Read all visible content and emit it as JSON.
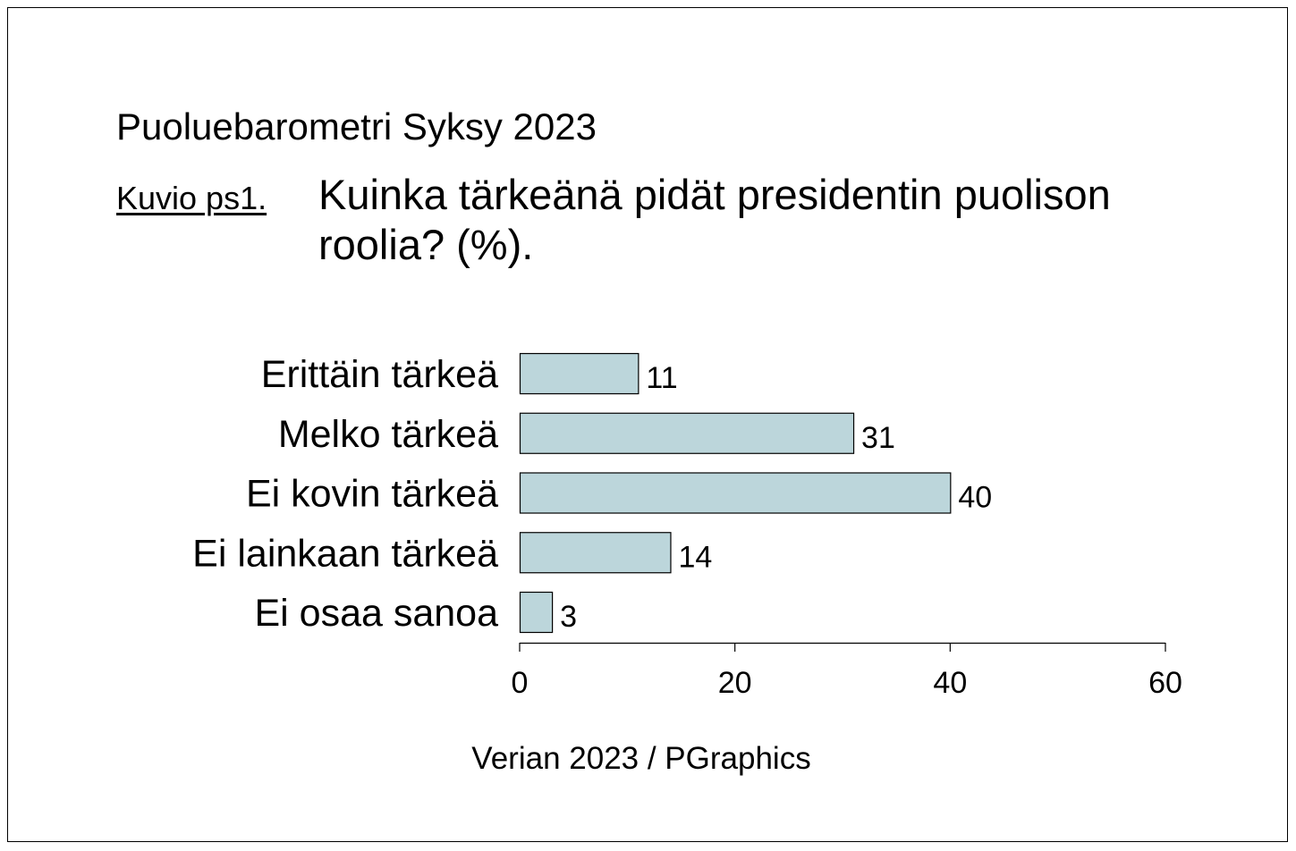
{
  "header": {
    "report_title": "Puoluebarometri Syksy 2023",
    "figure_label": "Kuvio ps1.",
    "figure_question": "Kuinka tärkeänä pidät presidentin puolison roolia? (%)."
  },
  "footer": {
    "source": "Verian 2023 / PGraphics"
  },
  "colors": {
    "bar_fill": "#bcd6db",
    "bar_stroke": "#000000",
    "text": "#000000",
    "frame": "#000000"
  },
  "chart_data": {
    "type": "bar",
    "orientation": "horizontal",
    "title": "Kuinka tärkeänä pidät presidentin puolison roolia? (%).",
    "xlabel": "",
    "ylabel": "",
    "categories": [
      "Erittäin tärkeä",
      "Melko tärkeä",
      "Ei kovin tärkeä",
      "Ei lainkaan tärkeä",
      "Ei osaa sanoa"
    ],
    "values": [
      11,
      31,
      40,
      14,
      3
    ],
    "data_labels": [
      "11",
      "31",
      "40",
      "14",
      "3"
    ],
    "xlim": [
      0,
      60
    ],
    "x_ticks": [
      0,
      20,
      40,
      60
    ],
    "x_tick_labels": [
      "0",
      "20",
      "40",
      "60"
    ],
    "grid": false,
    "legend": "none"
  }
}
